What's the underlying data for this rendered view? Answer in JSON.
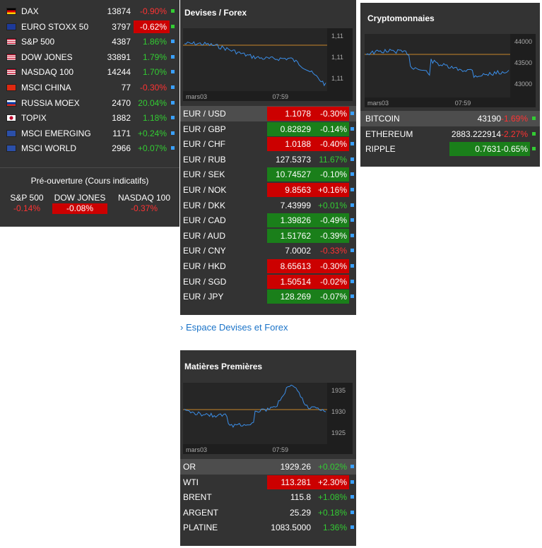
{
  "indices": {
    "rows": [
      {
        "name": "DAX",
        "value": "13874",
        "change": "-0.90%",
        "dir": "down",
        "flag": "de",
        "highlight": false
      },
      {
        "name": "EURO STOXX 50",
        "value": "3797",
        "change": "-0.62%",
        "dir": "down",
        "flag": "eu",
        "highlight": true
      },
      {
        "name": "S&P 500",
        "value": "4387",
        "change": "1.86%",
        "dir": "up",
        "flag": "us",
        "highlight": false
      },
      {
        "name": "DOW JONES",
        "value": "33891",
        "change": "1.79%",
        "dir": "up",
        "flag": "us",
        "highlight": false
      },
      {
        "name": "NASDAQ 100",
        "value": "14244",
        "change": "1.70%",
        "dir": "up",
        "flag": "us",
        "highlight": false
      },
      {
        "name": "MSCI CHINA",
        "value": "77",
        "change": "-0.30%",
        "dir": "down",
        "flag": "cn",
        "highlight": false
      },
      {
        "name": "RUSSIA MOEX",
        "value": "2470",
        "change": "20.04%",
        "dir": "up",
        "flag": "ru",
        "highlight": false
      },
      {
        "name": "TOPIX",
        "value": "1882",
        "change": "1.18%",
        "dir": "up",
        "flag": "jp",
        "highlight": false
      },
      {
        "name": "MSCI EMERGING",
        "value": "1171",
        "change": "+0.24%",
        "dir": "up",
        "flag": "msci",
        "highlight": false
      },
      {
        "name": "MSCI WORLD",
        "value": "2966",
        "change": "+0.07%",
        "dir": "up",
        "flag": "msci",
        "highlight": false
      }
    ],
    "preopening": {
      "title": "Pré-ouverture (Cours indicatifs)",
      "items": [
        {
          "label": "S&P 500",
          "value": "-0.14%",
          "highlight": false
        },
        {
          "label": "DOW JONES",
          "value": "-0.08%",
          "highlight": true
        },
        {
          "label": "NASDAQ 100",
          "value": "-0.37%",
          "highlight": false
        }
      ]
    }
  },
  "forex": {
    "title": "Devises / Forex",
    "chart": {
      "x_start": "mars03",
      "x_time": "07:59",
      "y_labels": [
        "1,11",
        "1,11",
        "1,11"
      ]
    },
    "rows": [
      {
        "name": "EUR / USD",
        "value": "1.1078",
        "change": "-0.30%",
        "box": "red",
        "chg_color": "white",
        "selected": true
      },
      {
        "name": "EUR / GBP",
        "value": "0.82829",
        "change": "-0.14%",
        "box": "green",
        "chg_color": "white",
        "selected": false
      },
      {
        "name": "EUR / CHF",
        "value": "1.0188",
        "change": "-0.40%",
        "box": "red",
        "chg_color": "white",
        "selected": false
      },
      {
        "name": "EUR / RUB",
        "value": "127.5373",
        "change": "11.67%",
        "box": "none",
        "chg_color": "green",
        "selected": false
      },
      {
        "name": "EUR / SEK",
        "value": "10.74527",
        "change": "-0.10%",
        "box": "green",
        "chg_color": "white",
        "selected": false
      },
      {
        "name": "EUR / NOK",
        "value": "9.8563",
        "change": "+0.16%",
        "box": "red",
        "chg_color": "white",
        "selected": false
      },
      {
        "name": "EUR / DKK",
        "value": "7.43999",
        "change": "+0.01%",
        "box": "none",
        "chg_color": "green",
        "selected": false
      },
      {
        "name": "EUR / CAD",
        "value": "1.39826",
        "change": "-0.49%",
        "box": "green",
        "chg_color": "white",
        "selected": false
      },
      {
        "name": "EUR / AUD",
        "value": "1.51762",
        "change": "-0.39%",
        "box": "green",
        "chg_color": "white",
        "selected": false
      },
      {
        "name": "EUR / CNY",
        "value": "7.0002",
        "change": "-0.33%",
        "box": "none",
        "chg_color": "red",
        "selected": false
      },
      {
        "name": "EUR / HKD",
        "value": "8.65613",
        "change": "-0.30%",
        "box": "red",
        "chg_color": "white",
        "selected": false
      },
      {
        "name": "EUR / SGD",
        "value": "1.50514",
        "change": "-0.02%",
        "box": "red",
        "chg_color": "white",
        "selected": false
      },
      {
        "name": "EUR / JPY",
        "value": "128.269",
        "change": "-0.07%",
        "box": "green",
        "chg_color": "white",
        "selected": false
      }
    ],
    "link": "› Espace Devises et Forex"
  },
  "crypto": {
    "title": "Cryptomonnaies",
    "chart": {
      "x_start": "mars03",
      "x_time": "07:59",
      "y_labels": [
        "44000",
        "43500",
        "43000"
      ]
    },
    "rows": [
      {
        "name": "BITCOIN",
        "value": "43190",
        "change": "-1.69%",
        "box": "none",
        "chg_color": "red",
        "selected": true
      },
      {
        "name": "ETHEREUM",
        "value": "2883.222914",
        "change": "-2.27%",
        "box": "none",
        "chg_color": "red",
        "selected": false
      },
      {
        "name": "RIPPLE",
        "value": "0.7631",
        "change": "-0.65%",
        "box": "green",
        "chg_color": "white",
        "selected": false
      }
    ]
  },
  "commodities": {
    "title": "Matières Premières",
    "chart": {
      "x_start": "mars03",
      "x_time": "07:59",
      "y_labels": [
        "1935",
        "1930",
        "1925"
      ]
    },
    "rows": [
      {
        "name": "OR",
        "value": "1929.26",
        "change": "+0.02%",
        "box": "none",
        "chg_color": "green",
        "selected": true
      },
      {
        "name": "WTI",
        "value": "113.281",
        "change": "+2.30%",
        "box": "red",
        "chg_color": "white",
        "selected": false
      },
      {
        "name": "BRENT",
        "value": "115.8",
        "change": "+1.08%",
        "box": "none",
        "chg_color": "green",
        "selected": false
      },
      {
        "name": "ARGENT",
        "value": "25.29",
        "change": "+0.18%",
        "box": "none",
        "chg_color": "green",
        "selected": false
      },
      {
        "name": "PLATINE",
        "value": "1083.5000",
        "change": "1.36%",
        "box": "none",
        "chg_color": "green",
        "selected": false
      }
    ]
  },
  "colors": {
    "up": "#33cc33",
    "down": "#ff3333",
    "red_box": "#cc0000",
    "green_box": "#1a7f1a",
    "dot": "#3aa0ff",
    "line": "#3b8ee8",
    "ref_line": "#c8872a"
  }
}
